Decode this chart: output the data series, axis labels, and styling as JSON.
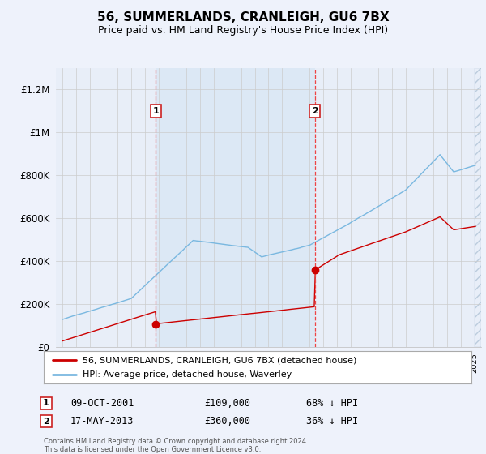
{
  "title": "56, SUMMERLANDS, CRANLEIGH, GU6 7BX",
  "subtitle": "Price paid vs. HM Land Registry's House Price Index (HPI)",
  "ylim": [
    0,
    1300000
  ],
  "yticks": [
    0,
    200000,
    400000,
    600000,
    800000,
    1000000,
    1200000
  ],
  "ytick_labels": [
    "£0",
    "£200K",
    "£400K",
    "£600K",
    "£800K",
    "£1M",
    "£1.2M"
  ],
  "background_color": "#eef2fb",
  "plot_background": "#e8eef8",
  "plot_bg_between": "#dce8f5",
  "sale1_year": 2001.78,
  "sale1_price": 109000,
  "sale1_label": "1",
  "sale1_date": "09-OCT-2001",
  "sale1_amount": "£109,000",
  "sale1_pct": "68% ↓ HPI",
  "sale2_year": 2013.37,
  "sale2_price": 360000,
  "sale2_label": "2",
  "sale2_date": "17-MAY-2013",
  "sale2_amount": "£360,000",
  "sale2_pct": "36% ↓ HPI",
  "legend_line1": "56, SUMMERLANDS, CRANLEIGH, GU6 7BX (detached house)",
  "legend_line2": "HPI: Average price, detached house, Waverley",
  "footer1": "Contains HM Land Registry data © Crown copyright and database right 2024.",
  "footer2": "This data is licensed under the Open Government Licence v3.0.",
  "hpi_color": "#7ab8e0",
  "price_color": "#cc0000",
  "vline_color": "#ee4444",
  "grid_color": "#cccccc",
  "title_fontsize": 11,
  "subtitle_fontsize": 9,
  "xlim_left": 1994.5,
  "xlim_right": 2025.5
}
